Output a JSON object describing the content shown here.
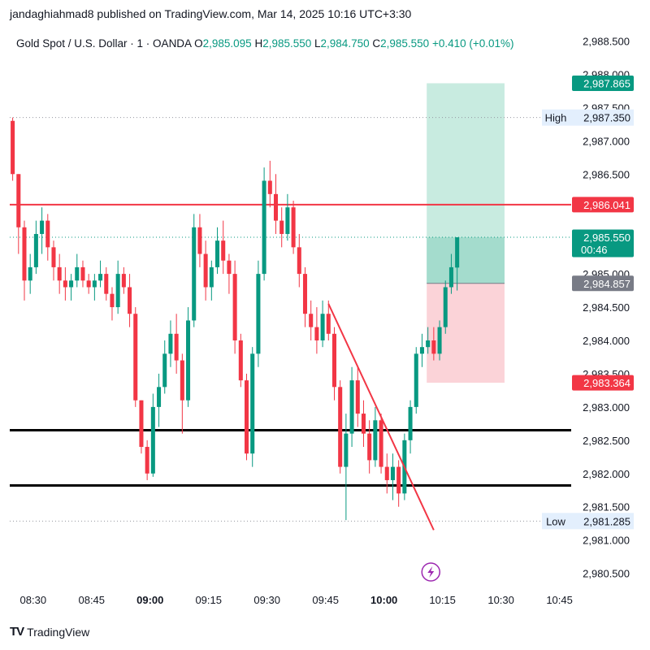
{
  "publish_line": "jandaghiahmad8 published on TradingView.com, Mar 14, 2025 10:16 UTC+3:30",
  "symbol": {
    "name": "Gold Spot / U.S. Dollar · 1 · OANDA",
    "o_label": "O",
    "o": "2,985.095",
    "h_label": "H",
    "h": "2,985.550",
    "l_label": "L",
    "l": "2,984.750",
    "c_label": "C",
    "c": "2,985.550",
    "change": "+0.410 (+0.01%)"
  },
  "footer": {
    "logo": "TV",
    "brand": "TradingView"
  },
  "colors": {
    "up": "#089981",
    "down": "#f23645",
    "line_red": "#f23645",
    "target_zone": "#c8ebe0",
    "stop_zone": "#fbd3d8",
    "profit_fill": "#a4dccd",
    "grey_tag": "#787b86",
    "badge": "#9c27b0"
  },
  "chart_data": {
    "type": "candlestick",
    "y_range": [
      2980.3,
      2988.75
    ],
    "x_range": [
      0,
      96
    ],
    "y_ticks": [
      {
        "v": 2988.5,
        "label": "2,988.500"
      },
      {
        "v": 2988.0,
        "label": "2,988.000"
      },
      {
        "v": 2987.5,
        "label": "2,987.500"
      },
      {
        "v": 2987.0,
        "label": "2,987.000"
      },
      {
        "v": 2986.5,
        "label": "2,986.500"
      },
      {
        "v": 2985.0,
        "label": "2,985.000"
      },
      {
        "v": 2984.5,
        "label": "2,984.500"
      },
      {
        "v": 2984.0,
        "label": "2,984.000"
      },
      {
        "v": 2983.5,
        "label": "2,983.500"
      },
      {
        "v": 2983.0,
        "label": "2,983.000"
      },
      {
        "v": 2982.5,
        "label": "2,982.500"
      },
      {
        "v": 2982.0,
        "label": "2,982.000"
      },
      {
        "v": 2981.5,
        "label": "2,981.500"
      },
      {
        "v": 2981.0,
        "label": "2,981.000"
      },
      {
        "v": 2980.5,
        "label": "2,980.500"
      }
    ],
    "x_ticks": [
      {
        "i": 4,
        "label": "08:30",
        "bold": false
      },
      {
        "i": 14,
        "label": "08:45",
        "bold": false
      },
      {
        "i": 24,
        "label": "09:00",
        "bold": true
      },
      {
        "i": 34,
        "label": "09:15",
        "bold": false
      },
      {
        "i": 44,
        "label": "09:30",
        "bold": false
      },
      {
        "i": 54,
        "label": "09:45",
        "bold": false
      },
      {
        "i": 64,
        "label": "10:00",
        "bold": true
      },
      {
        "i": 74,
        "label": "10:15",
        "bold": false
      },
      {
        "i": 84,
        "label": "10:30",
        "bold": false
      },
      {
        "i": 94,
        "label": "10:45",
        "bold": false
      }
    ],
    "candles": [
      [
        2987.3,
        2987.35,
        2986.4,
        2986.5
      ],
      [
        2986.5,
        2986.5,
        2985.3,
        2985.7
      ],
      [
        2985.7,
        2985.8,
        2984.6,
        2984.9
      ],
      [
        2984.9,
        2985.3,
        2984.7,
        2985.1
      ],
      [
        2985.1,
        2985.8,
        2985.0,
        2985.6
      ],
      [
        2985.6,
        2986.0,
        2985.3,
        2985.8
      ],
      [
        2985.8,
        2985.9,
        2985.2,
        2985.4
      ],
      [
        2985.4,
        2985.5,
        2984.9,
        2985.1
      ],
      [
        2985.1,
        2985.3,
        2984.7,
        2984.9
      ],
      [
        2984.9,
        2985.1,
        2984.6,
        2984.8
      ],
      [
        2984.8,
        2985.0,
        2984.6,
        2984.9
      ],
      [
        2984.9,
        2985.3,
        2984.8,
        2985.1
      ],
      [
        2985.1,
        2985.2,
        2984.8,
        2984.9
      ],
      [
        2984.9,
        2985.0,
        2984.7,
        2984.8
      ],
      [
        2984.8,
        2985.0,
        2984.6,
        2984.9
      ],
      [
        2984.9,
        2985.2,
        2984.8,
        2985.0
      ],
      [
        2985.0,
        2985.1,
        2984.6,
        2984.7
      ],
      [
        2984.7,
        2984.8,
        2984.3,
        2984.5
      ],
      [
        2984.5,
        2985.2,
        2984.4,
        2985.0
      ],
      [
        2985.0,
        2985.1,
        2984.7,
        2984.8
      ],
      [
        2984.8,
        2985.0,
        2984.2,
        2984.4
      ],
      [
        2984.4,
        2984.5,
        2983.0,
        2983.1
      ],
      [
        2983.1,
        2983.1,
        2982.3,
        2982.4
      ],
      [
        2982.4,
        2982.5,
        2981.9,
        2982.0
      ],
      [
        2982.0,
        2983.2,
        2981.95,
        2983.0
      ],
      [
        2983.0,
        2983.5,
        2982.7,
        2983.3
      ],
      [
        2983.3,
        2984.0,
        2983.2,
        2983.8
      ],
      [
        2983.8,
        2984.3,
        2983.6,
        2984.1
      ],
      [
        2984.1,
        2984.4,
        2983.5,
        2983.7
      ],
      [
        2983.7,
        2983.8,
        2982.6,
        2983.1
      ],
      [
        2983.1,
        2984.5,
        2983.0,
        2984.3
      ],
      [
        2984.3,
        2985.9,
        2984.2,
        2985.7
      ],
      [
        2985.7,
        2985.9,
        2985.1,
        2985.3
      ],
      [
        2985.3,
        2985.5,
        2984.6,
        2984.8
      ],
      [
        2984.8,
        2985.2,
        2984.6,
        2985.1
      ],
      [
        2985.1,
        2985.7,
        2985.0,
        2985.5
      ],
      [
        2985.5,
        2985.8,
        2985.0,
        2985.2
      ],
      [
        2985.2,
        2985.3,
        2984.7,
        2985.0
      ],
      [
        2985.0,
        2985.2,
        2983.8,
        2984.0
      ],
      [
        2984.0,
        2984.1,
        2983.3,
        2983.4
      ],
      [
        2983.4,
        2983.5,
        2982.2,
        2982.3
      ],
      [
        2982.3,
        2983.9,
        2982.1,
        2983.8
      ],
      [
        2983.8,
        2985.2,
        2983.6,
        2985.0
      ],
      [
        2985.0,
        2986.6,
        2984.9,
        2986.4
      ],
      [
        2986.4,
        2986.7,
        2986.0,
        2986.2
      ],
      [
        2986.2,
        2986.5,
        2985.6,
        2985.8
      ],
      [
        2985.8,
        2986.0,
        2985.4,
        2985.6
      ],
      [
        2985.6,
        2986.2,
        2985.5,
        2986.0
      ],
      [
        2986.0,
        2986.1,
        2985.3,
        2985.4
      ],
      [
        2985.4,
        2985.6,
        2984.8,
        2985.0
      ],
      [
        2985.0,
        2985.1,
        2984.2,
        2984.4
      ],
      [
        2984.4,
        2984.6,
        2984.0,
        2984.2
      ],
      [
        2984.2,
        2984.5,
        2983.8,
        2984.0
      ],
      [
        2984.0,
        2984.6,
        2983.9,
        2984.4
      ],
      [
        2984.4,
        2984.6,
        2984.0,
        2984.1
      ],
      [
        2984.1,
        2984.2,
        2983.1,
        2983.3
      ],
      [
        2983.3,
        2983.4,
        2982.0,
        2982.1
      ],
      [
        2982.1,
        2982.9,
        2981.3,
        2982.6
      ],
      [
        2982.6,
        2983.6,
        2982.4,
        2983.4
      ],
      [
        2983.4,
        2983.6,
        2982.7,
        2982.9
      ],
      [
        2982.9,
        2983.1,
        2982.4,
        2982.6
      ],
      [
        2982.6,
        2982.8,
        2982.0,
        2982.2
      ],
      [
        2982.2,
        2983.0,
        2982.1,
        2982.8
      ],
      [
        2982.8,
        2982.9,
        2982.0,
        2982.1
      ],
      [
        2982.1,
        2982.3,
        2981.7,
        2981.9
      ],
      [
        2981.9,
        2982.3,
        2981.6,
        2982.1
      ],
      [
        2982.1,
        2982.2,
        2981.5,
        2981.7
      ],
      [
        2981.7,
        2982.6,
        2981.6,
        2982.5
      ],
      [
        2982.5,
        2983.1,
        2982.3,
        2983.0
      ],
      [
        2983.0,
        2983.9,
        2982.9,
        2983.8
      ],
      [
        2983.8,
        2984.1,
        2983.6,
        2983.9
      ],
      [
        2983.9,
        2984.2,
        2983.8,
        2984.0
      ],
      [
        2984.0,
        2984.2,
        2983.7,
        2983.8
      ],
      [
        2983.8,
        2984.3,
        2983.7,
        2984.2
      ],
      [
        2984.2,
        2984.9,
        2984.1,
        2984.8
      ],
      [
        2984.8,
        2985.3,
        2984.7,
        2985.1
      ],
      [
        2985.095,
        2985.55,
        2984.75,
        2985.55
      ]
    ],
    "horizontal_lines": [
      {
        "price": 2986.041,
        "label": "2,986.041",
        "color": "#f23645",
        "style": "solid"
      },
      {
        "price": 2982.65,
        "label": "",
        "color": "#000000",
        "style": "thick"
      },
      {
        "price": 2981.82,
        "label": "",
        "color": "#000000",
        "style": "thick"
      }
    ],
    "trendline": {
      "x1": 54.5,
      "y1": 2984.55,
      "x2": 72.5,
      "y2": 2981.15
    },
    "position": {
      "x_start": 71.3,
      "x_end": 84.6,
      "entry": 2984.857,
      "entry_label": "2,984.857",
      "target": 2987.865,
      "target_label": "2,987.865",
      "stop": 2983.364,
      "stop_label": "2,983.364",
      "current": 2985.55
    },
    "session_high": {
      "price": 2987.35,
      "tag": "High",
      "label": "2,987.350"
    },
    "session_low": {
      "price": 2981.285,
      "tag": "Low",
      "label": "2,981.285"
    },
    "last_price": {
      "price": 2985.55,
      "label": "2,985.550",
      "countdown": "00:46"
    },
    "badge_icon": "lightning-bolt-icon"
  }
}
